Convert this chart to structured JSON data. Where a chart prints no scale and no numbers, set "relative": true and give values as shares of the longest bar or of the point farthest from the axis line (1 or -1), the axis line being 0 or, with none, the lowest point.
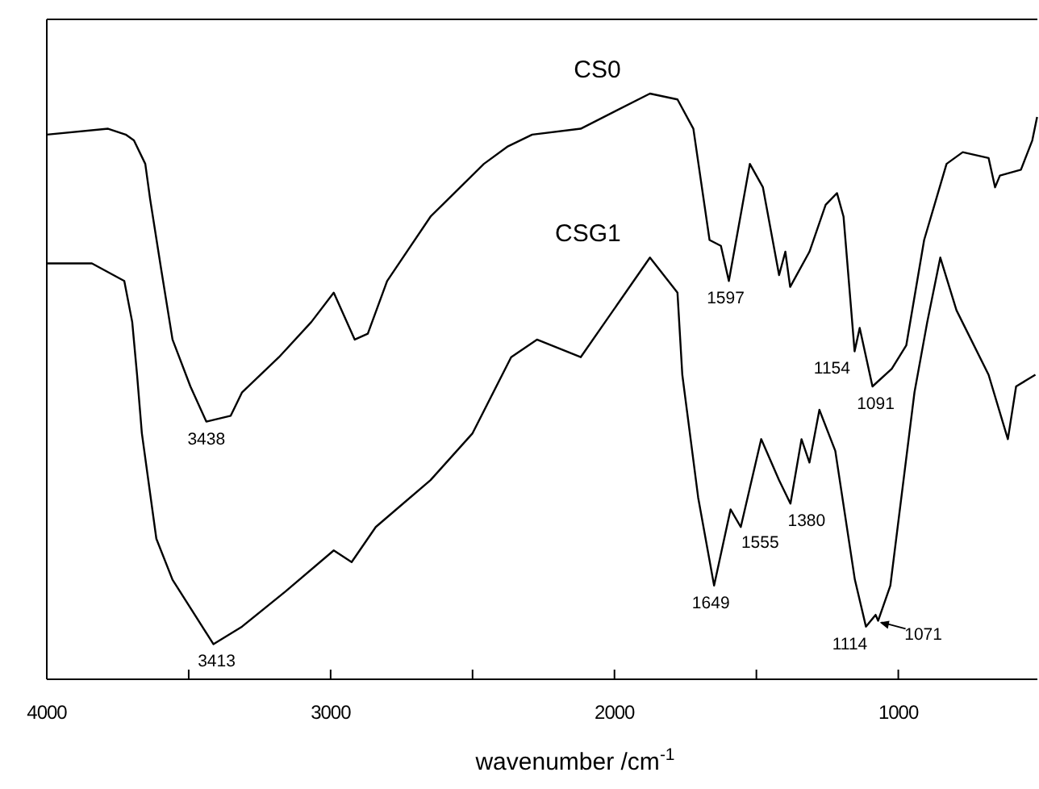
{
  "chart_data": {
    "type": "line",
    "relative": true,
    "xlabel": "wavenumber /cm$^{-1}$",
    "xlim": [
      4000,
      510
    ],
    "xticks": [
      4000,
      {
        "value": 3500,
        "label": null
      },
      3000,
      {
        "value": 2500,
        "label": null
      },
      2000,
      {
        "value": 1500,
        "label": null
      },
      1000
    ],
    "grid": false,
    "legend": false,
    "marker": "none",
    "line_style": "solid",
    "series": [
      {
        "name": "CS0",
        "color": "#000000",
        "x": [
          4000,
          3784,
          3722,
          3693,
          3653,
          3636,
          3597,
          3557,
          3494,
          3438,
          3352,
          3312,
          3182,
          3068,
          2989,
          2915,
          2869,
          2801,
          2648,
          2460,
          2375,
          2290,
          2119,
          1875,
          1778,
          1722,
          1665,
          1625,
          1597,
          1523,
          1477,
          1420,
          1398,
          1381,
          1313,
          1256,
          1216,
          1193,
          1154,
          1136,
          1091,
          1023,
          972,
          909,
          830,
          773,
          682,
          659,
          642,
          568,
          528,
          511
        ],
        "values": [
          0.93,
          0.94,
          0.93,
          0.92,
          0.88,
          0.82,
          0.7,
          0.58,
          0.5,
          0.44,
          0.45,
          0.49,
          0.55,
          0.61,
          0.66,
          0.58,
          0.59,
          0.68,
          0.79,
          0.88,
          0.91,
          0.93,
          0.94,
          1.0,
          0.99,
          0.94,
          0.75,
          0.74,
          0.68,
          0.88,
          0.84,
          0.69,
          0.73,
          0.67,
          0.73,
          0.81,
          0.83,
          0.79,
          0.56,
          0.6,
          0.5,
          0.53,
          0.57,
          0.75,
          0.88,
          0.9,
          0.89,
          0.84,
          0.86,
          0.87,
          0.92,
          0.96
        ]
      },
      {
        "name": "CSG1",
        "color": "#000000",
        "x": [
          4000,
          3841,
          3727,
          3699,
          3682,
          3665,
          3614,
          3557,
          3413,
          3312,
          3159,
          2989,
          2926,
          2841,
          2648,
          2500,
          2364,
          2273,
          2119,
          1875,
          1778,
          1761,
          1705,
          1649,
          1591,
          1555,
          1483,
          1420,
          1380,
          1341,
          1313,
          1278,
          1222,
          1153,
          1114,
          1080,
          1071,
          1028,
          943,
          898,
          852,
          795,
          682,
          614,
          585,
          517
        ],
        "values": [
          0.71,
          0.71,
          0.68,
          0.61,
          0.52,
          0.42,
          0.24,
          0.17,
          0.06,
          0.09,
          0.15,
          0.22,
          0.2,
          0.26,
          0.34,
          0.42,
          0.55,
          0.58,
          0.55,
          0.72,
          0.66,
          0.52,
          0.31,
          0.16,
          0.29,
          0.26,
          0.41,
          0.34,
          0.3,
          0.41,
          0.37,
          0.46,
          0.39,
          0.17,
          0.09,
          0.11,
          0.1,
          0.16,
          0.49,
          0.61,
          0.72,
          0.63,
          0.52,
          0.41,
          0.5,
          0.52
        ]
      }
    ],
    "annotations": [
      {
        "text": "3438",
        "x": 3438,
        "y": 0.44
      },
      {
        "text": "1597",
        "x": 1597,
        "y": 0.68
      },
      {
        "text": "1154",
        "x": 1154,
        "y": 0.56
      },
      {
        "text": "1091",
        "x": 1091,
        "y": 0.5
      },
      {
        "text": "3413",
        "x": 3413,
        "y": 0.06
      },
      {
        "text": "1649",
        "x": 1649,
        "y": 0.16
      },
      {
        "text": "1555",
        "x": 1555,
        "y": 0.26
      },
      {
        "text": "1380",
        "x": 1380,
        "y": 0.3
      },
      {
        "text": "1114",
        "x": 1114,
        "y": 0.09
      },
      {
        "text": "1071",
        "x": 1071,
        "y": 0.1
      }
    ]
  }
}
